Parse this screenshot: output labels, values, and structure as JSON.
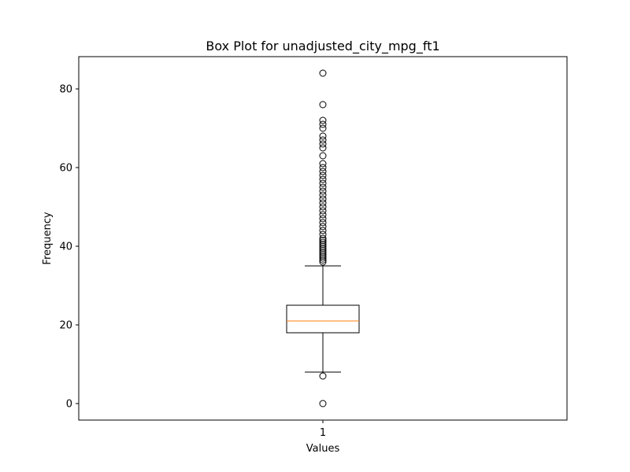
{
  "chart_data": {
    "type": "box",
    "title": "Box Plot for unadjusted_city_mpg_ft1",
    "xlabel": "Values",
    "ylabel": "Frequency",
    "categories": [
      "1"
    ],
    "ylim": [
      -4.2,
      88.2
    ],
    "yticks": [
      0,
      20,
      40,
      60,
      80
    ],
    "grid": false,
    "legend": "none",
    "colors": {
      "box": "#000000",
      "median": "#ff7f0e",
      "outlier": "#000000",
      "background": "#ffffff"
    },
    "boxes": [
      {
        "category": "1",
        "q1": 18,
        "median": 21,
        "q3": 25,
        "whisker_low": 8,
        "whisker_high": 35,
        "outliers": [
          0,
          7,
          36,
          36.5,
          37,
          37.5,
          38,
          38.5,
          39,
          39.5,
          40,
          40.5,
          41,
          41.5,
          42,
          43,
          44,
          45,
          46,
          47,
          48,
          49,
          50,
          51,
          52,
          53,
          54,
          55,
          56,
          57,
          58,
          59,
          60,
          61,
          63,
          65,
          66,
          67,
          68,
          70,
          71,
          72,
          76,
          84
        ]
      }
    ]
  }
}
